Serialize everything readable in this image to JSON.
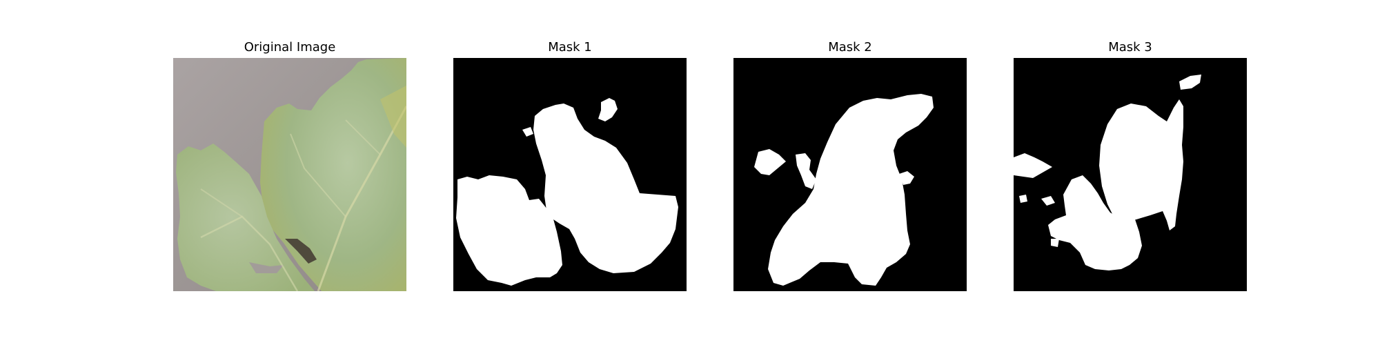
{
  "panels": [
    {
      "title": "Original Image"
    },
    {
      "title": "Mask 1"
    },
    {
      "title": "Mask 2"
    },
    {
      "title": "Mask 3"
    }
  ],
  "colors": {
    "background": "#ffffff",
    "mask_bg": "#000000",
    "mask_fg": "#ffffff",
    "leaf_green": "#9fb87a",
    "leaf_yellow": "#b8bf6e",
    "table_gray": "#a39c9c"
  }
}
